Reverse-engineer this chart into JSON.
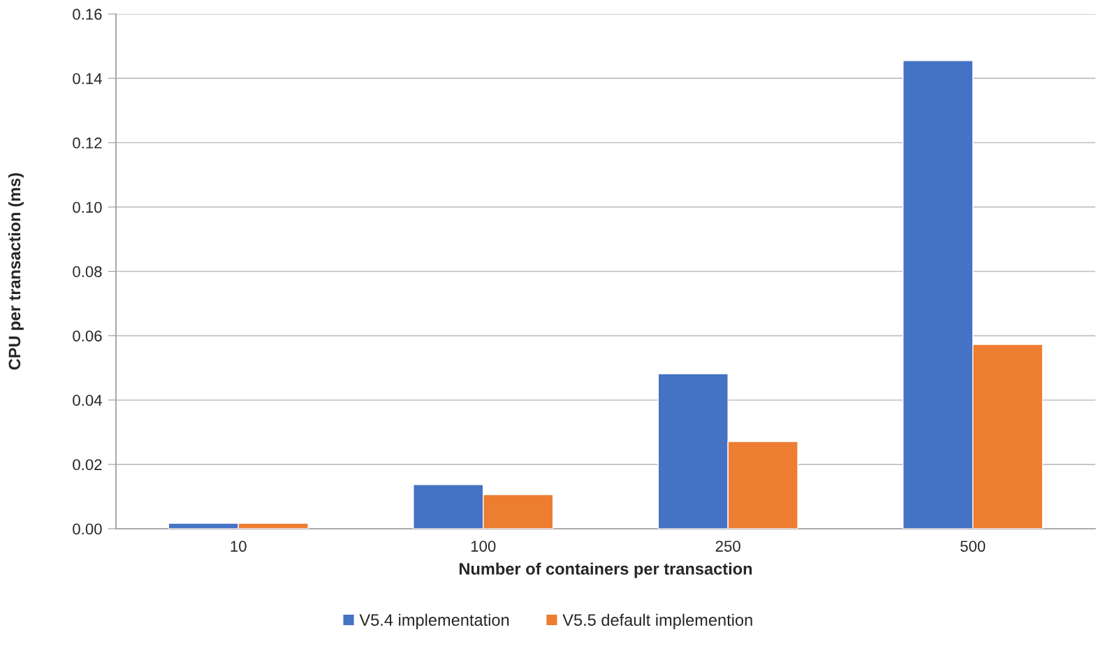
{
  "chart_data": {
    "type": "bar",
    "xlabel": "Number of containers per transaction",
    "ylabel": "CPU per transaction (ms)",
    "categories": [
      "10",
      "100",
      "250",
      "500"
    ],
    "series": [
      {
        "name": "V5.4 implementation",
        "color": "#4472c4",
        "values": [
          0.0017,
          0.0137,
          0.0482,
          0.1455
        ]
      },
      {
        "name": "V5.5 default implemention",
        "color": "#ed7d31",
        "values": [
          0.0017,
          0.0106,
          0.0271,
          0.0573
        ]
      }
    ],
    "ylim": [
      0,
      0.16
    ],
    "yticks": [
      {
        "value": 0,
        "label": "0.00"
      },
      {
        "value": 0.02,
        "label": "0.02"
      },
      {
        "value": 0.04,
        "label": "0.04"
      },
      {
        "value": 0.06,
        "label": "0.06"
      },
      {
        "value": 0.08,
        "label": "0.08"
      },
      {
        "value": 0.1,
        "label": "0.10"
      },
      {
        "value": 0.12,
        "label": "0.12"
      },
      {
        "value": 0.14,
        "label": "0.14"
      },
      {
        "value": 0.16,
        "label": "0.16"
      }
    ],
    "grid": "y",
    "legend": "bottom"
  }
}
